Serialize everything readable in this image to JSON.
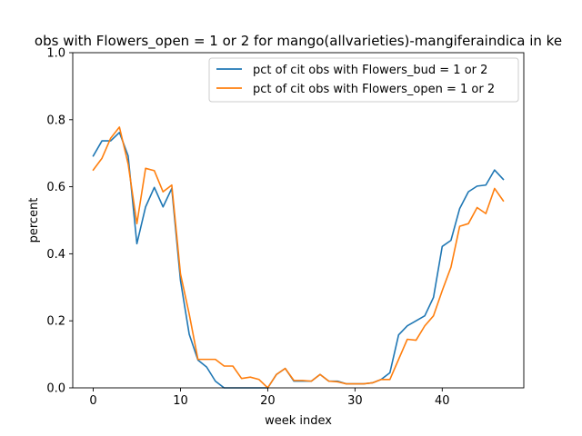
{
  "chart_data": {
    "type": "line",
    "title": "obs with Flowers_open = 1 or 2 for mango(allvarieties)-mangiferaindica in ke",
    "xlabel": "week index",
    "ylabel": "percent",
    "xlim": [
      -2.35,
      49.35
    ],
    "ylim": [
      0,
      1.0
    ],
    "xticks": [
      0,
      10,
      20,
      30,
      40
    ],
    "yticks": [
      0.0,
      0.2,
      0.4,
      0.6,
      0.8,
      1.0
    ],
    "ytick_labels": [
      "0.0",
      "0.2",
      "0.4",
      "0.6",
      "0.8",
      "1.0"
    ],
    "legend_position": "upper-right",
    "grid": false,
    "series": [
      {
        "name": "pct of cit obs with Flowers_bud = 1 or 2",
        "color": "#1f77b4",
        "x": [
          0,
          1,
          2,
          3,
          4,
          5,
          6,
          7,
          8,
          9,
          10,
          11,
          12,
          13,
          14,
          15,
          16,
          17,
          18,
          19,
          20,
          21,
          22,
          23,
          24,
          25,
          26,
          27,
          28,
          29,
          30,
          31,
          32,
          33,
          34,
          35,
          36,
          37,
          38,
          39,
          40,
          41,
          42,
          43,
          44,
          45,
          46,
          47
        ],
        "values": [
          0.692,
          0.737,
          0.737,
          0.762,
          0.692,
          0.43,
          0.54,
          0.598,
          0.54,
          0.595,
          0.32,
          0.16,
          0.083,
          0.062,
          0.02,
          0.0,
          0.0,
          0.0,
          0.0,
          0.0,
          0.0,
          0.04,
          0.058,
          0.02,
          0.02,
          0.02,
          0.04,
          0.02,
          0.02,
          0.012,
          0.012,
          0.012,
          0.015,
          0.025,
          0.045,
          0.158,
          0.185,
          0.2,
          0.215,
          0.27,
          0.422,
          0.44,
          0.535,
          0.585,
          0.602,
          0.605,
          0.65,
          0.622
        ]
      },
      {
        "name": "pct of cit obs with Flowers_open = 1 or 2",
        "color": "#ff7f0e",
        "x": [
          0,
          1,
          2,
          3,
          4,
          5,
          6,
          7,
          8,
          9,
          10,
          11,
          12,
          13,
          14,
          15,
          16,
          17,
          18,
          19,
          20,
          21,
          22,
          23,
          24,
          25,
          26,
          27,
          28,
          29,
          30,
          31,
          32,
          33,
          34,
          35,
          36,
          37,
          38,
          39,
          40,
          41,
          42,
          43,
          44,
          45,
          46,
          47
        ],
        "values": [
          0.65,
          0.685,
          0.745,
          0.778,
          0.668,
          0.49,
          0.655,
          0.648,
          0.585,
          0.605,
          0.34,
          0.22,
          0.085,
          0.085,
          0.085,
          0.065,
          0.065,
          0.028,
          0.032,
          0.025,
          0.0,
          0.04,
          0.058,
          0.022,
          0.022,
          0.02,
          0.04,
          0.02,
          0.018,
          0.012,
          0.012,
          0.012,
          0.015,
          0.025,
          0.025,
          0.085,
          0.145,
          0.142,
          0.185,
          0.215,
          0.29,
          0.36,
          0.482,
          0.49,
          0.538,
          0.52,
          0.595,
          0.558
        ]
      }
    ]
  }
}
